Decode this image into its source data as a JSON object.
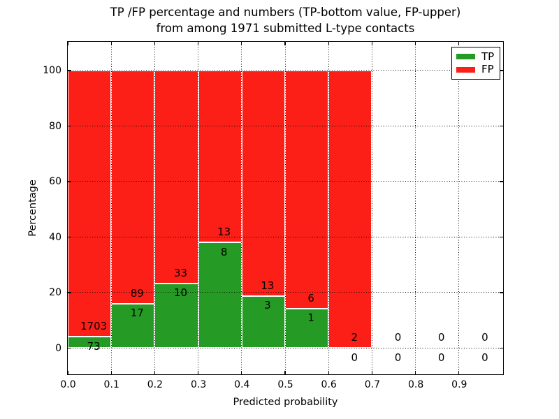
{
  "chart_data": {
    "type": "bar",
    "stacked": true,
    "title_line1": "TP /FP percentage and numbers (TP-bottom value, FP-upper)",
    "title_line2": "from among 1971 submitted L-type contacts",
    "xlabel": "Predicted probability",
    "ylabel": "Percentage",
    "xlim": [
      0.0,
      1.0
    ],
    "ylim": [
      -9.2,
      110.3
    ],
    "x_ticks": [
      "0.0",
      "0.1",
      "0.2",
      "0.3",
      "0.4",
      "0.5",
      "0.6",
      "0.7",
      "0.8",
      "0.9"
    ],
    "y_ticks": [
      "0",
      "20",
      "40",
      "60",
      "80",
      "100"
    ],
    "grid": {
      "style": "dotted",
      "color": "#000000",
      "axisbelow": false
    },
    "bin_width": 0.1,
    "categories": [
      0.0,
      0.1,
      0.2,
      0.3,
      0.4,
      0.5,
      0.6,
      0.7,
      0.8,
      0.9
    ],
    "series": [
      {
        "name": "TP",
        "color": "#259b25",
        "counts": [
          73,
          17,
          10,
          8,
          3,
          1,
          0,
          0,
          0,
          0
        ]
      },
      {
        "name": "FP",
        "color": "#fb1f17",
        "counts": [
          1703,
          89,
          33,
          13,
          13,
          6,
          2,
          0,
          0,
          0
        ]
      }
    ],
    "tp_pct": [
      4.11,
      16.04,
      23.26,
      38.1,
      18.75,
      14.29,
      0,
      0,
      0,
      0
    ],
    "bar_total_pct": [
      100,
      100,
      100,
      100,
      100,
      100,
      100,
      0,
      0,
      0
    ],
    "legend": {
      "position": "upper right",
      "items": [
        {
          "label": "TP",
          "color": "#259b25"
        },
        {
          "label": "FP",
          "color": "#fb1f17"
        }
      ]
    }
  }
}
